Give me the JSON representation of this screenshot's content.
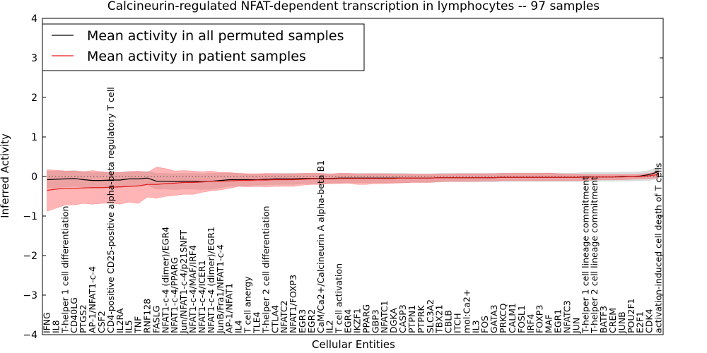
{
  "chart_data": {
    "type": "line",
    "title": "Calcineurin-regulated NFAT-dependent transcription in lymphocytes -- 97 samples",
    "xlabel": "Cellular Entities",
    "ylabel": "Inferred Activity",
    "ylim": [
      -4,
      4
    ],
    "yticks": [
      "−4",
      "−3",
      "−2",
      "−1",
      "0",
      "1",
      "2",
      "3",
      "4"
    ],
    "legend": {
      "placement": "top-left",
      "entries": [
        "Mean activity in all permuted samples",
        "Mean activity in patient samples"
      ]
    },
    "colors": {
      "permuted": "#000000",
      "patient": "#e31a1c",
      "permuted_band": "#bfbfbf",
      "patient_band": "#ff5a5a"
    },
    "categories": [
      "IFNG",
      "IL8",
      "T-helper 1 cell differentiation",
      "CD40LG",
      "PTGS2",
      "AP-1/NFAT1-c-4",
      "CSF2",
      "CD4-positive CD25-positive alpha-beta regulatory T cell",
      "IL2RA",
      "IL5",
      "TNF",
      "RNF128",
      "FASLG",
      "NFAT1-c-4 (dimer)/EGR4",
      "NFAT1-c-4/PPARG",
      "Jun/NFAT1-c-4/p21SNFT",
      "NFAT1-c-4/MAF/IRF4",
      "NFAT1-c-4/ICER1",
      "NFAT1-c-4 (dimer)/EGR1",
      "JunB/Fra1/NFAT1-c-4",
      "AP-1/NFAT1",
      "IL4",
      "T cell anergy",
      "TLE4",
      "T-helper 2 cell differentiation",
      "CTLA4",
      "NFATC2",
      "NFAT1/FOXP3",
      "EGR3",
      "EGR2",
      "CaM/Ca2+/Calcineurin A alpha-beta B1",
      "IL2",
      "T cell activation",
      "EGR4",
      "IKZF1",
      "PPARG",
      "GBP3",
      "NFATC1",
      "DGKA",
      "CASP3",
      "PTPN1",
      "PTPRK",
      "SLC3A2",
      "TBX21",
      "CBLB",
      "ITCH",
      "mol:Ca2+",
      "IL3",
      "FOS",
      "GATA3",
      "PRKCQ",
      "CALM1",
      "FOSL1",
      "IRF4",
      "FOXP3",
      "MAF",
      "EGR1",
      "NFATC3",
      "JUN",
      "T-helper 1 cell lineage commitment",
      "T-helper 2 cell lineage commitment",
      "BATF3",
      "CREM",
      "JUNB",
      "POU2F1",
      "E2F1",
      "CDK4",
      "activation-induced cell death of T cells"
    ],
    "series": [
      {
        "name": "Mean activity in all permuted samples",
        "values": [
          -0.08,
          -0.07,
          -0.06,
          -0.05,
          -0.08,
          -0.1,
          -0.1,
          -0.09,
          -0.09,
          -0.06,
          -0.06,
          -0.04,
          -0.12,
          -0.12,
          -0.13,
          -0.12,
          -0.12,
          -0.13,
          -0.12,
          -0.1,
          -0.08,
          -0.08,
          -0.08,
          -0.08,
          -0.07,
          -0.06,
          -0.06,
          -0.06,
          -0.05,
          -0.05,
          -0.05,
          -0.05,
          -0.04,
          -0.04,
          -0.04,
          -0.04,
          -0.04,
          -0.04,
          -0.04,
          -0.04,
          -0.04,
          -0.04,
          -0.04,
          -0.03,
          -0.03,
          -0.03,
          -0.03,
          -0.03,
          -0.03,
          -0.03,
          -0.02,
          -0.02,
          -0.02,
          -0.02,
          -0.02,
          -0.02,
          -0.02,
          -0.02,
          -0.02,
          -0.01,
          -0.01,
          -0.01,
          -0.01,
          0.0,
          0.0,
          0.01,
          0.05,
          0.12
        ],
        "lower": [
          -0.3,
          -0.28,
          -0.26,
          -0.25,
          -0.27,
          -0.3,
          -0.3,
          -0.29,
          -0.29,
          -0.25,
          -0.24,
          -0.22,
          -0.32,
          -0.32,
          -0.33,
          -0.32,
          -0.32,
          -0.33,
          -0.32,
          -0.28,
          -0.25,
          -0.24,
          -0.23,
          -0.22,
          -0.21,
          -0.2,
          -0.2,
          -0.2,
          -0.18,
          -0.18,
          -0.18,
          -0.17,
          -0.16,
          -0.16,
          -0.16,
          -0.16,
          -0.16,
          -0.16,
          -0.16,
          -0.16,
          -0.15,
          -0.15,
          -0.15,
          -0.14,
          -0.14,
          -0.14,
          -0.14,
          -0.14,
          -0.14,
          -0.14,
          -0.13,
          -0.13,
          -0.13,
          -0.13,
          -0.13,
          -0.13,
          -0.13,
          -0.13,
          -0.13,
          -0.12,
          -0.12,
          -0.12,
          -0.12,
          -0.11,
          -0.11,
          -0.1,
          -0.1,
          -0.05
        ],
        "upper": [
          0.14,
          0.14,
          0.14,
          0.15,
          0.13,
          0.1,
          0.1,
          0.11,
          0.11,
          0.13,
          0.12,
          0.14,
          0.08,
          0.08,
          0.07,
          0.08,
          0.08,
          0.07,
          0.08,
          0.09,
          0.09,
          0.08,
          0.07,
          0.06,
          0.07,
          0.08,
          0.08,
          0.08,
          0.08,
          0.08,
          0.08,
          0.07,
          0.08,
          0.08,
          0.08,
          0.08,
          0.08,
          0.08,
          0.08,
          0.08,
          0.07,
          0.07,
          0.07,
          0.08,
          0.08,
          0.08,
          0.08,
          0.08,
          0.08,
          0.08,
          0.09,
          0.09,
          0.09,
          0.09,
          0.09,
          0.09,
          0.09,
          0.09,
          0.09,
          0.1,
          0.1,
          0.1,
          0.1,
          0.11,
          0.11,
          0.12,
          0.15,
          0.25
        ]
      },
      {
        "name": "Mean activity in patient samples",
        "values": [
          -0.35,
          -0.32,
          -0.3,
          -0.3,
          -0.29,
          -0.28,
          -0.28,
          -0.27,
          -0.26,
          -0.25,
          -0.24,
          -0.2,
          -0.2,
          -0.18,
          -0.17,
          -0.15,
          -0.15,
          -0.14,
          -0.12,
          -0.12,
          -0.11,
          -0.1,
          -0.1,
          -0.09,
          -0.09,
          -0.08,
          -0.08,
          -0.08,
          -0.07,
          -0.06,
          -0.06,
          -0.06,
          -0.05,
          -0.05,
          -0.05,
          -0.05,
          -0.05,
          -0.05,
          -0.05,
          -0.04,
          -0.04,
          -0.04,
          -0.04,
          -0.03,
          -0.03,
          -0.03,
          -0.03,
          -0.03,
          -0.03,
          -0.03,
          -0.02,
          -0.02,
          -0.02,
          -0.02,
          -0.02,
          -0.02,
          -0.02,
          -0.02,
          -0.02,
          -0.02,
          -0.01,
          -0.01,
          -0.01,
          -0.01,
          0.0,
          0.0,
          0.02,
          0.05
        ],
        "lower": [
          -0.88,
          -0.8,
          -0.72,
          -0.72,
          -0.68,
          -0.7,
          -0.68,
          -0.67,
          -0.7,
          -0.65,
          -0.68,
          -0.52,
          -0.55,
          -0.5,
          -0.48,
          -0.45,
          -0.45,
          -0.4,
          -0.36,
          -0.34,
          -0.3,
          -0.25,
          -0.26,
          -0.25,
          -0.26,
          -0.25,
          -0.25,
          -0.25,
          -0.22,
          -0.2,
          -0.2,
          -0.18,
          -0.18,
          -0.17,
          -0.2,
          -0.2,
          -0.18,
          -0.18,
          -0.17,
          -0.16,
          -0.15,
          -0.15,
          -0.15,
          -0.13,
          -0.12,
          -0.12,
          -0.12,
          -0.12,
          -0.11,
          -0.11,
          -0.1,
          -0.1,
          -0.1,
          -0.1,
          -0.1,
          -0.1,
          -0.1,
          -0.1,
          -0.1,
          -0.1,
          -0.09,
          -0.08,
          -0.08,
          -0.08,
          -0.07,
          -0.06,
          -0.05,
          -0.03
        ],
        "upper": [
          0.17,
          0.16,
          0.14,
          0.14,
          0.12,
          0.15,
          0.12,
          0.1,
          0.1,
          0.12,
          0.14,
          0.1,
          0.24,
          0.2,
          0.14,
          0.15,
          0.14,
          0.12,
          0.14,
          0.1,
          0.1,
          0.08,
          0.07,
          0.07,
          0.08,
          0.07,
          0.07,
          0.07,
          0.08,
          0.08,
          0.08,
          0.06,
          0.08,
          0.08,
          0.06,
          0.07,
          0.07,
          0.07,
          0.06,
          0.06,
          0.06,
          0.06,
          0.06,
          0.06,
          0.06,
          0.07,
          0.07,
          0.07,
          0.07,
          0.07,
          0.08,
          0.08,
          0.08,
          0.08,
          0.08,
          0.09,
          0.07,
          0.06,
          0.06,
          0.05,
          0.05,
          0.05,
          0.05,
          0.05,
          0.05,
          0.06,
          0.08,
          0.13
        ]
      }
    ]
  }
}
